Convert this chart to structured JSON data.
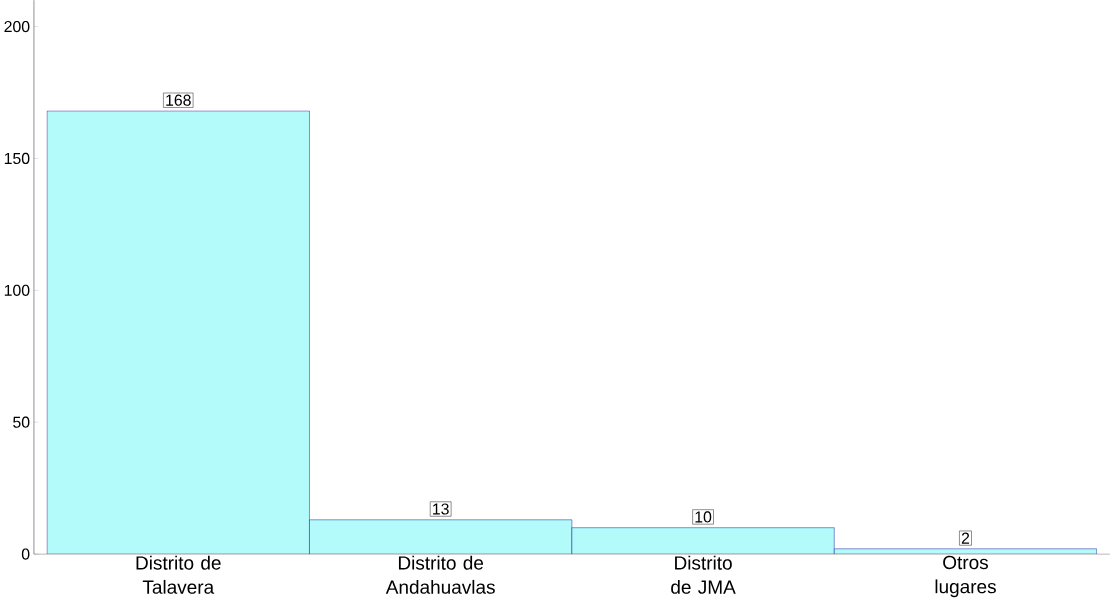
{
  "chart_data": {
    "type": "bar",
    "categories": [
      "Distrito de Talavera",
      "Distrito de Andahuavlas",
      "Distrito de JMA",
      "Otros lugares"
    ],
    "values": [
      168,
      13,
      10,
      2
    ],
    "color": "#b3fbfb",
    "ylim": [
      0,
      210
    ],
    "yticks": [
      0,
      50,
      100,
      150,
      200
    ],
    "data_labels": true,
    "grid": false
  }
}
